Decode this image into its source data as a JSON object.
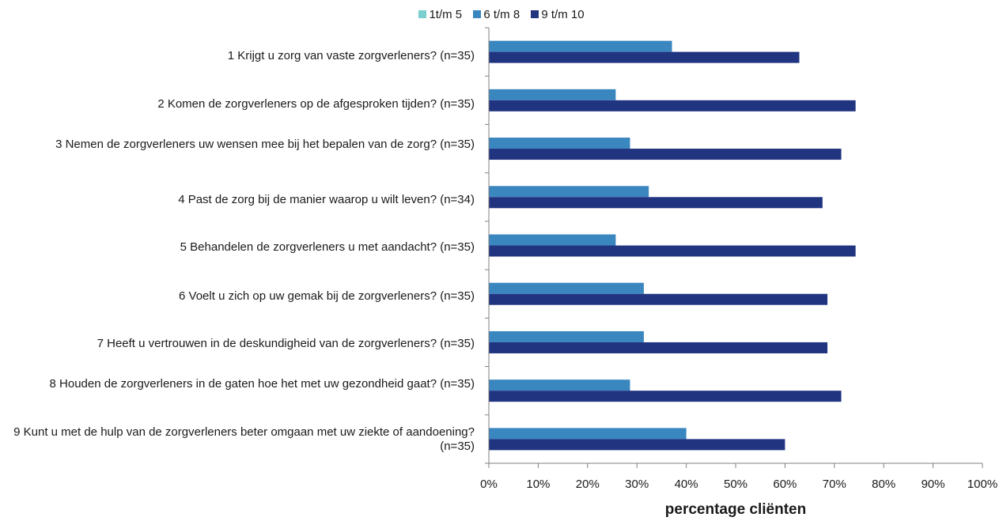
{
  "chart_data": {
    "type": "bar",
    "orientation": "horizontal",
    "categories": [
      "1 Krijgt u zorg van vaste zorgverleners? (n=35)",
      "2 Komen de zorgverleners op de afgesproken tijden? (n=35)",
      "3 Nemen de zorgverleners uw wensen mee bij het bepalen van de zorg? (n=35)",
      "4 Past de zorg bij de manier waarop u wilt leven? (n=34)",
      "5 Behandelen de zorgverleners u met aandacht? (n=35)",
      "6 Voelt u zich op uw gemak bij de zorgverleners? (n=35)",
      "7 Heeft u vertrouwen in de deskundigheid van de zorgverleners? (n=35)",
      "8 Houden de zorgverleners in de gaten hoe het met uw gezondheid gaat? (n=35)",
      "9 Kunt u met de hulp van de zorgverleners beter omgaan met uw ziekte of aandoening? (n=35)"
    ],
    "series": [
      {
        "name": "1t/m 5",
        "color": "#7ccfd0",
        "values": [
          0,
          0,
          0,
          0,
          0,
          0,
          0,
          0,
          0
        ]
      },
      {
        "name": "6 t/m 8",
        "color": "#3a86bf",
        "values": [
          37.1,
          25.7,
          28.6,
          32.4,
          25.7,
          31.4,
          31.4,
          28.6,
          40.0
        ]
      },
      {
        "name": "9 t/m 10",
        "color": "#213480",
        "values": [
          62.9,
          74.3,
          71.4,
          67.6,
          74.3,
          68.6,
          68.6,
          71.4,
          60.0
        ]
      }
    ],
    "xlim": [
      0,
      100
    ],
    "xticks": [
      "0%",
      "10%",
      "20%",
      "30%",
      "40%",
      "50%",
      "60%",
      "70%",
      "80%",
      "90%",
      "100%"
    ],
    "xlabel": "percentage cliënten",
    "ylabel": "",
    "title": "",
    "legend_position": "top",
    "grid": false
  }
}
